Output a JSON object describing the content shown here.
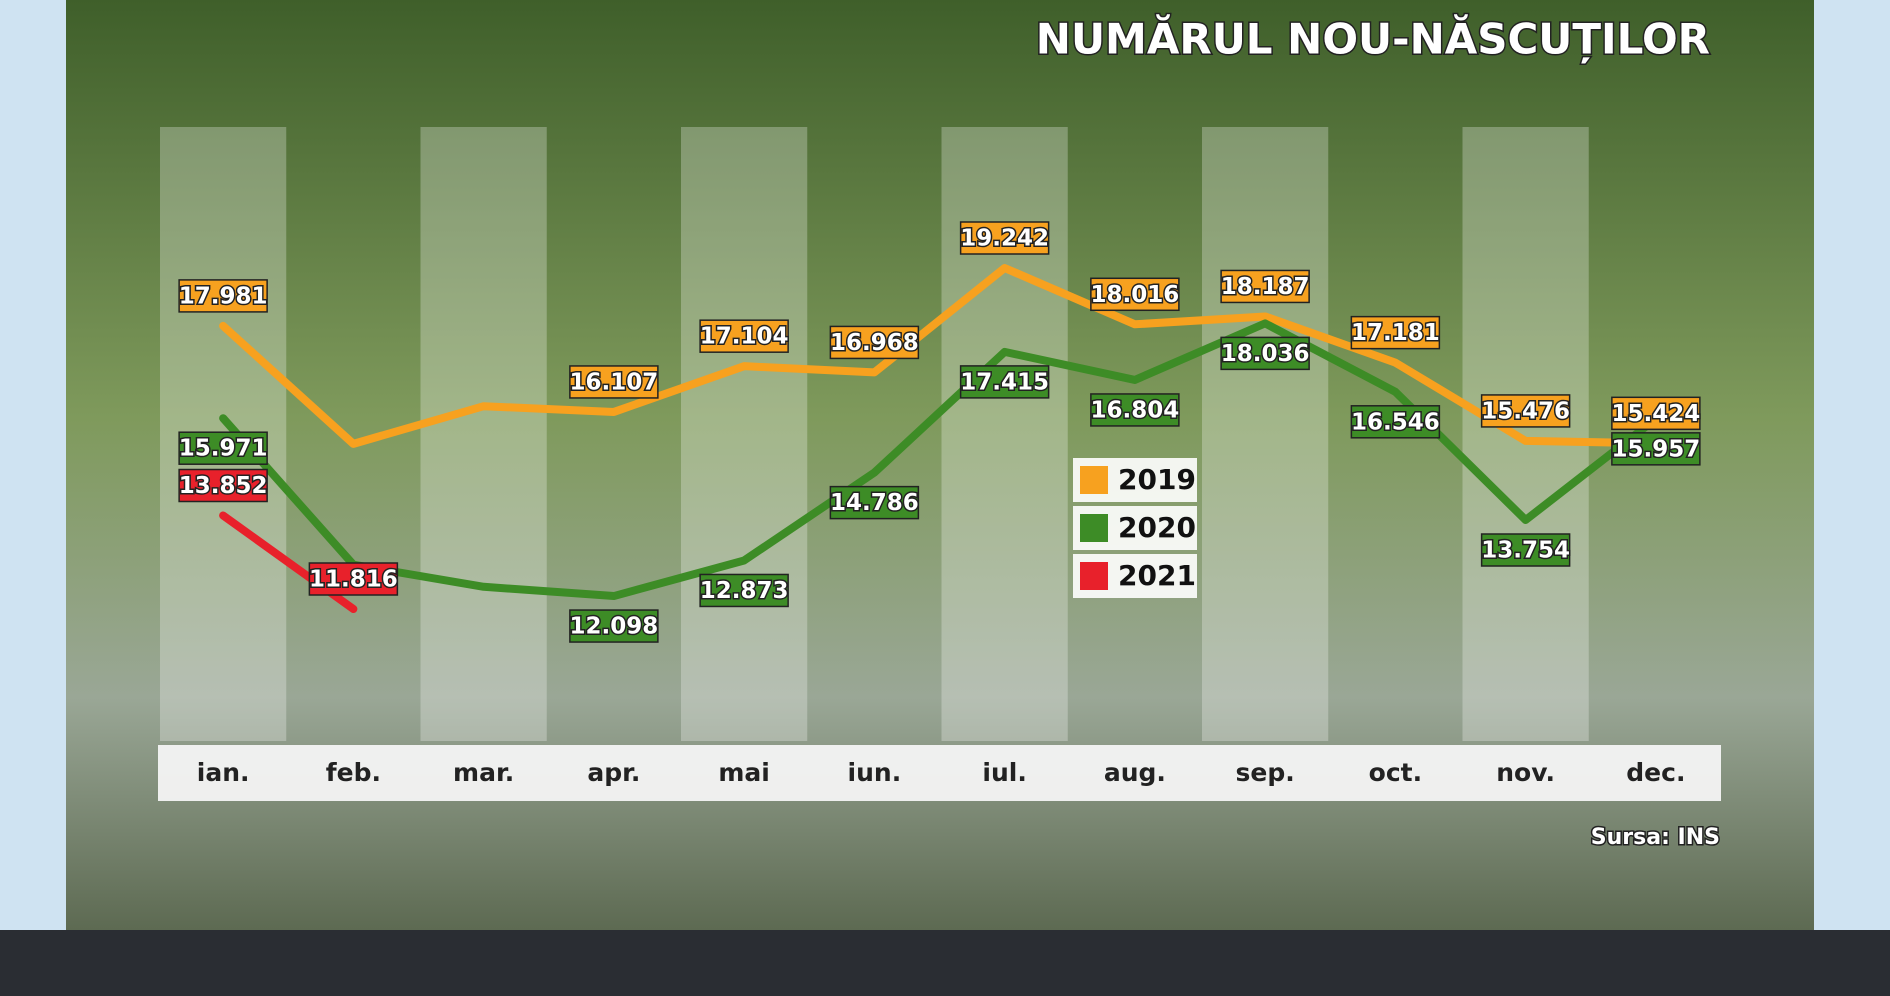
{
  "chart_data": {
    "type": "line",
    "title": "NUMĂRUL NOU-NĂSCUȚILOR",
    "source": "Sursa: INS",
    "categories": [
      "ian.",
      "feb.",
      "mar.",
      "apr.",
      "mai",
      "iun.",
      "iul.",
      "aug.",
      "sep.",
      "oct.",
      "nov.",
      "dec."
    ],
    "series": [
      {
        "name": "2019",
        "color": "#f7a11f",
        "values": [
          17981,
          15412,
          16232,
          16107,
          17104,
          16968,
          19242,
          18016,
          18187,
          17181,
          15476,
          15424
        ],
        "value_labels": [
          "17.981",
          null,
          null,
          "16.107",
          "17.104",
          "16.968",
          "19.242",
          "18.016",
          "18.187",
          "17.181",
          "15.476",
          "15.424"
        ]
      },
      {
        "name": "2020",
        "color": "#3d8c26",
        "values": [
          15971,
          12781,
          12300,
          12098,
          12873,
          14786,
          17415,
          16804,
          18036,
          16546,
          13754,
          15957
        ],
        "value_labels": [
          "15.971",
          null,
          null,
          "12.098",
          "12.873",
          "14.786",
          "17.415",
          "16.804",
          "18.036",
          "16.546",
          "13.754",
          "15.957"
        ]
      },
      {
        "name": "2021",
        "color": "#e8212b",
        "values": [
          13852,
          11816,
          null,
          null,
          null,
          null,
          null,
          null,
          null,
          null,
          null,
          null
        ],
        "value_labels": [
          "13.852",
          "11.816",
          null,
          null,
          null,
          null,
          null,
          null,
          null,
          null,
          null,
          null
        ]
      }
    ]
  }
}
